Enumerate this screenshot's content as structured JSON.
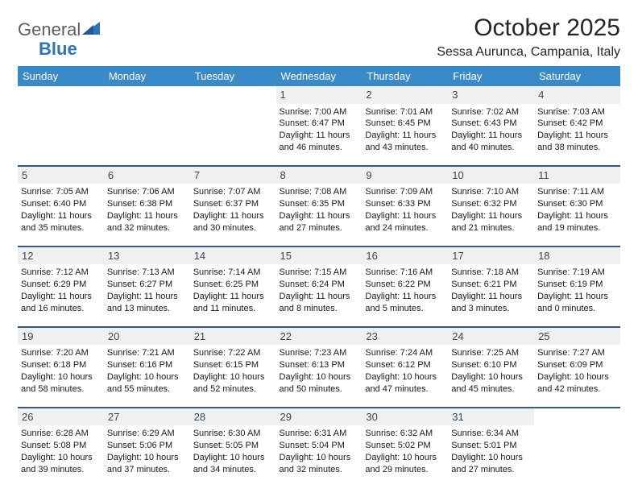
{
  "logo": {
    "text1": "General",
    "text2": "Blue"
  },
  "title": "October 2025",
  "location": "Sessa Aurunca, Campania, Italy",
  "dayNames": [
    "Sunday",
    "Monday",
    "Tuesday",
    "Wednesday",
    "Thursday",
    "Friday",
    "Saturday"
  ],
  "colors": {
    "headerBg": "#3a8ac7",
    "headerText": "#ffffff",
    "dayNumBg": "#eef0f2",
    "rowBorder": "#3a587a",
    "logoGray": "#5a5f66",
    "logoBlue": "#2f73b8"
  },
  "weeks": [
    [
      null,
      null,
      null,
      {
        "n": "1",
        "sr": "7:00 AM",
        "ss": "6:47 PM",
        "dl": "11 hours and 46 minutes."
      },
      {
        "n": "2",
        "sr": "7:01 AM",
        "ss": "6:45 PM",
        "dl": "11 hours and 43 minutes."
      },
      {
        "n": "3",
        "sr": "7:02 AM",
        "ss": "6:43 PM",
        "dl": "11 hours and 40 minutes."
      },
      {
        "n": "4",
        "sr": "7:03 AM",
        "ss": "6:42 PM",
        "dl": "11 hours and 38 minutes."
      }
    ],
    [
      {
        "n": "5",
        "sr": "7:05 AM",
        "ss": "6:40 PM",
        "dl": "11 hours and 35 minutes."
      },
      {
        "n": "6",
        "sr": "7:06 AM",
        "ss": "6:38 PM",
        "dl": "11 hours and 32 minutes."
      },
      {
        "n": "7",
        "sr": "7:07 AM",
        "ss": "6:37 PM",
        "dl": "11 hours and 30 minutes."
      },
      {
        "n": "8",
        "sr": "7:08 AM",
        "ss": "6:35 PM",
        "dl": "11 hours and 27 minutes."
      },
      {
        "n": "9",
        "sr": "7:09 AM",
        "ss": "6:33 PM",
        "dl": "11 hours and 24 minutes."
      },
      {
        "n": "10",
        "sr": "7:10 AM",
        "ss": "6:32 PM",
        "dl": "11 hours and 21 minutes."
      },
      {
        "n": "11",
        "sr": "7:11 AM",
        "ss": "6:30 PM",
        "dl": "11 hours and 19 minutes."
      }
    ],
    [
      {
        "n": "12",
        "sr": "7:12 AM",
        "ss": "6:29 PM",
        "dl": "11 hours and 16 minutes."
      },
      {
        "n": "13",
        "sr": "7:13 AM",
        "ss": "6:27 PM",
        "dl": "11 hours and 13 minutes."
      },
      {
        "n": "14",
        "sr": "7:14 AM",
        "ss": "6:25 PM",
        "dl": "11 hours and 11 minutes."
      },
      {
        "n": "15",
        "sr": "7:15 AM",
        "ss": "6:24 PM",
        "dl": "11 hours and 8 minutes."
      },
      {
        "n": "16",
        "sr": "7:16 AM",
        "ss": "6:22 PM",
        "dl": "11 hours and 5 minutes."
      },
      {
        "n": "17",
        "sr": "7:18 AM",
        "ss": "6:21 PM",
        "dl": "11 hours and 3 minutes."
      },
      {
        "n": "18",
        "sr": "7:19 AM",
        "ss": "6:19 PM",
        "dl": "11 hours and 0 minutes."
      }
    ],
    [
      {
        "n": "19",
        "sr": "7:20 AM",
        "ss": "6:18 PM",
        "dl": "10 hours and 58 minutes."
      },
      {
        "n": "20",
        "sr": "7:21 AM",
        "ss": "6:16 PM",
        "dl": "10 hours and 55 minutes."
      },
      {
        "n": "21",
        "sr": "7:22 AM",
        "ss": "6:15 PM",
        "dl": "10 hours and 52 minutes."
      },
      {
        "n": "22",
        "sr": "7:23 AM",
        "ss": "6:13 PM",
        "dl": "10 hours and 50 minutes."
      },
      {
        "n": "23",
        "sr": "7:24 AM",
        "ss": "6:12 PM",
        "dl": "10 hours and 47 minutes."
      },
      {
        "n": "24",
        "sr": "7:25 AM",
        "ss": "6:10 PM",
        "dl": "10 hours and 45 minutes."
      },
      {
        "n": "25",
        "sr": "7:27 AM",
        "ss": "6:09 PM",
        "dl": "10 hours and 42 minutes."
      }
    ],
    [
      {
        "n": "26",
        "sr": "6:28 AM",
        "ss": "5:08 PM",
        "dl": "10 hours and 39 minutes."
      },
      {
        "n": "27",
        "sr": "6:29 AM",
        "ss": "5:06 PM",
        "dl": "10 hours and 37 minutes."
      },
      {
        "n": "28",
        "sr": "6:30 AM",
        "ss": "5:05 PM",
        "dl": "10 hours and 34 minutes."
      },
      {
        "n": "29",
        "sr": "6:31 AM",
        "ss": "5:04 PM",
        "dl": "10 hours and 32 minutes."
      },
      {
        "n": "30",
        "sr": "6:32 AM",
        "ss": "5:02 PM",
        "dl": "10 hours and 29 minutes."
      },
      {
        "n": "31",
        "sr": "6:34 AM",
        "ss": "5:01 PM",
        "dl": "10 hours and 27 minutes."
      },
      null
    ]
  ],
  "labels": {
    "sunrise": "Sunrise:",
    "sunset": "Sunset:",
    "daylight": "Daylight:"
  }
}
